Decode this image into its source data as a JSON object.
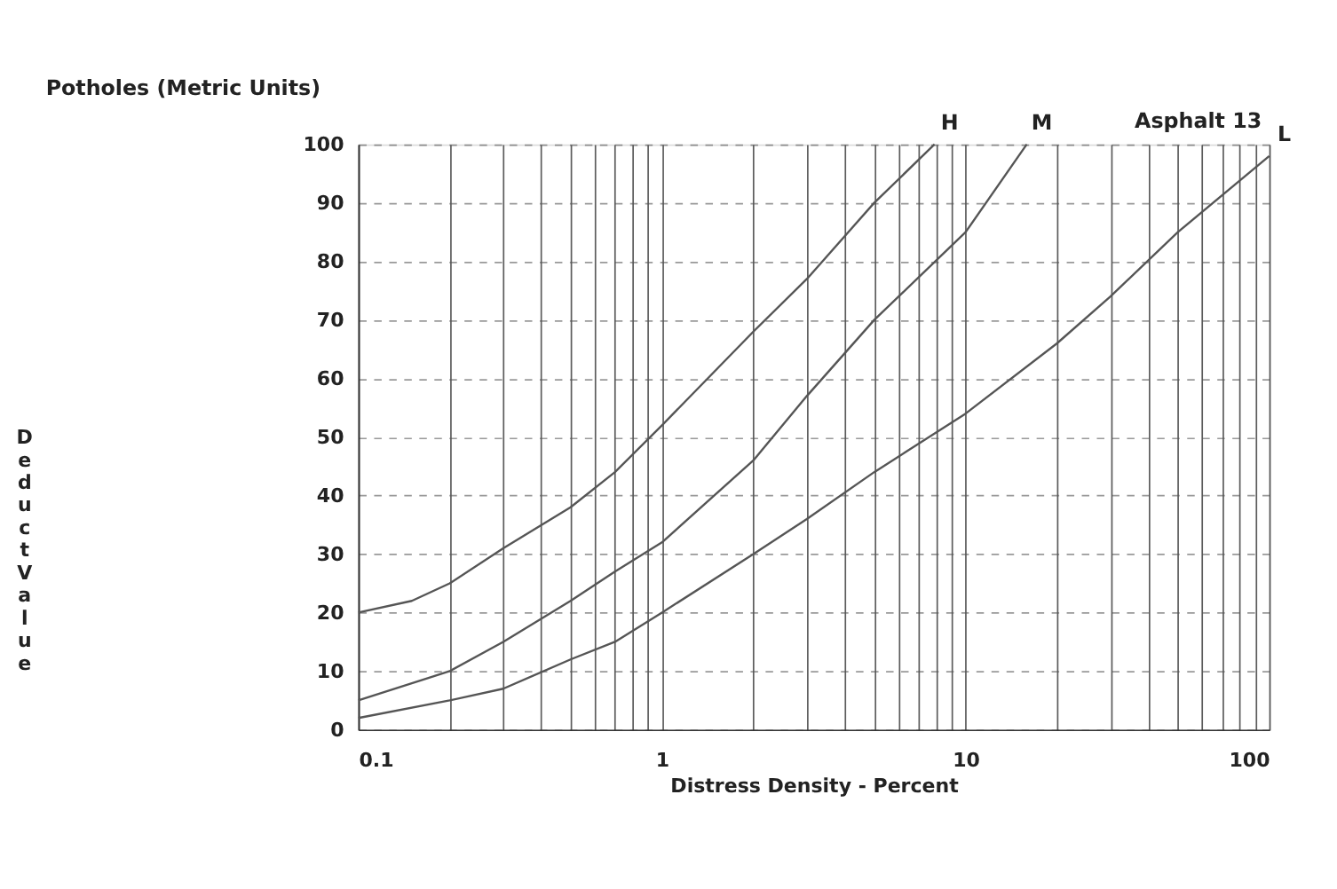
{
  "chart_data": {
    "type": "line",
    "title": "Potholes (Metric Units)",
    "xlabel": "Distress Density - Percent",
    "ylabel": "Deduct Value",
    "annotations": [
      "Asphalt 13"
    ],
    "log": "x",
    "grid": true,
    "marker": "none",
    "line_style": "solid",
    "xlim": [
      0.1,
      100
    ],
    "ylim": [
      0,
      100
    ],
    "xticks": [
      0.1,
      {
        "value": 0.2,
        "label": null
      },
      {
        "value": 0.3,
        "label": null
      },
      {
        "value": 0.4,
        "label": null
      },
      {
        "value": 0.5,
        "label": null
      },
      {
        "value": 0.6,
        "label": null
      },
      {
        "value": 0.7,
        "label": null
      },
      {
        "value": 0.8,
        "label": null
      },
      {
        "value": 0.9,
        "label": null
      },
      1,
      {
        "value": 2,
        "label": null
      },
      {
        "value": 3,
        "label": null
      },
      {
        "value": 4,
        "label": null
      },
      {
        "value": 5,
        "label": null
      },
      {
        "value": 6,
        "label": null
      },
      {
        "value": 7,
        "label": null
      },
      {
        "value": 8,
        "label": null
      },
      {
        "value": 9,
        "label": null
      },
      10,
      {
        "value": 20,
        "label": null
      },
      {
        "value": 30,
        "label": null
      },
      {
        "value": 40,
        "label": null
      },
      {
        "value": 50,
        "label": null
      },
      {
        "value": 60,
        "label": null
      },
      {
        "value": 70,
        "label": null
      },
      {
        "value": 80,
        "label": null
      },
      {
        "value": 90,
        "label": null
      },
      100
    ],
    "yticks": [
      0,
      10,
      20,
      30,
      40,
      50,
      60,
      70,
      80,
      90,
      100
    ],
    "series": [
      {
        "name": "H",
        "color": "#555555",
        "x": [
          0.1,
          0.15,
          0.2,
          0.3,
          0.5,
          0.7,
          1,
          2,
          3,
          5,
          7.9
        ],
        "values": [
          20,
          22,
          25,
          31,
          38,
          44,
          52,
          68,
          77,
          90,
          100
        ]
      },
      {
        "name": "M",
        "color": "#555555",
        "x": [
          0.1,
          0.2,
          0.3,
          0.5,
          0.7,
          1,
          2,
          3,
          5,
          10,
          15.9
        ],
        "values": [
          5,
          10,
          15,
          22,
          27,
          32,
          46,
          57,
          70,
          85,
          100
        ]
      },
      {
        "name": "L",
        "color": "#555555",
        "x": [
          0.1,
          0.2,
          0.3,
          0.5,
          0.7,
          1,
          2,
          3,
          5,
          10,
          20,
          30,
          50,
          100
        ],
        "values": [
          2,
          5,
          7,
          12,
          15,
          20,
          30,
          36,
          44,
          54,
          66,
          74,
          85,
          98
        ]
      }
    ]
  }
}
